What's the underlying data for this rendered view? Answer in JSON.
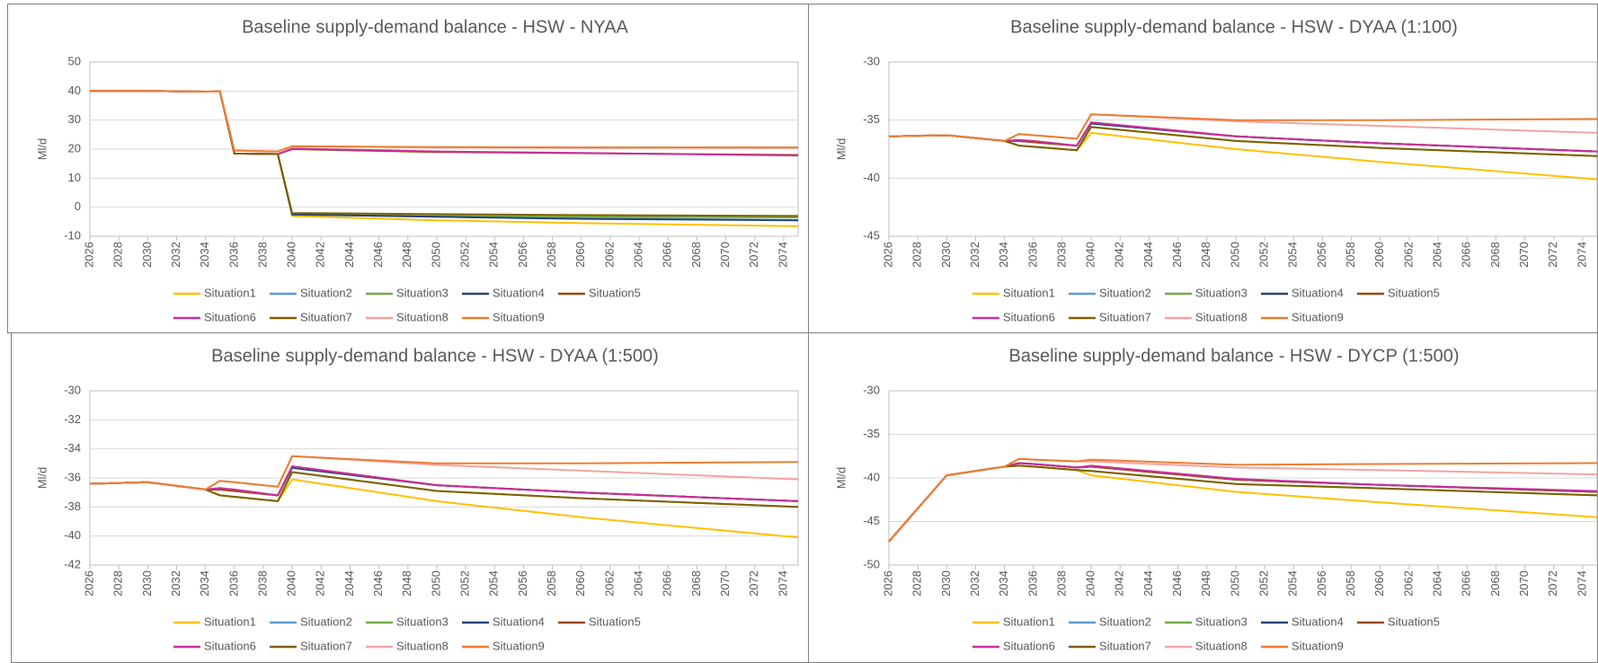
{
  "chart_data": [
    {
      "type": "line",
      "title": "Baseline supply-demand balance - HSW - NYAA",
      "y_label": "Ml/d",
      "x": [
        2026,
        2030,
        2034,
        2035,
        2036,
        2039,
        2040,
        2050,
        2060,
        2075
      ],
      "xlim": [
        2026,
        2075
      ],
      "xticks": [
        2026,
        2028,
        2030,
        2032,
        2034,
        2036,
        2038,
        2040,
        2042,
        2044,
        2046,
        2048,
        2050,
        2052,
        2054,
        2056,
        2058,
        2060,
        2062,
        2064,
        2066,
        2068,
        2070,
        2072,
        2074
      ],
      "ylim": [
        -10,
        50
      ],
      "yticks": [
        -10,
        0,
        10,
        20,
        30,
        40,
        50
      ],
      "grid": true,
      "series": [
        {
          "name": "Situation1",
          "color": "#ffc000",
          "values": [
            40,
            40,
            39.8,
            39.8,
            18.5,
            18.3,
            -3,
            -4.5,
            -5.5,
            -6.5
          ]
        },
        {
          "name": "Situation2",
          "color": "#5b9bd5",
          "values": [
            40,
            40,
            39.8,
            39.8,
            18.5,
            18.3,
            -2.5,
            -3.3,
            -3.8,
            -4.4
          ]
        },
        {
          "name": "Situation3",
          "color": "#70ad47",
          "values": [
            40,
            40,
            39.8,
            39.8,
            18.5,
            18.3,
            -2.5,
            -3,
            -3.3,
            -3.5
          ]
        },
        {
          "name": "Situation4",
          "color": "#264478",
          "values": [
            40,
            40,
            39.8,
            39.8,
            18.5,
            18.3,
            -2.5,
            -3.3,
            -4,
            -4.5
          ]
        },
        {
          "name": "Situation5",
          "color": "#9e480e",
          "values": [
            40,
            40,
            39.8,
            39.8,
            18.5,
            18.3,
            20,
            19,
            18.6,
            18
          ]
        },
        {
          "name": "Situation6",
          "color": "#c8309c",
          "values": [
            40,
            40,
            39.8,
            39.8,
            18.5,
            18.3,
            20.2,
            19.2,
            18.7,
            17.8
          ]
        },
        {
          "name": "Situation7",
          "color": "#806000",
          "values": [
            40,
            40,
            39.8,
            39.8,
            18.5,
            18.3,
            -2,
            -2.4,
            -2.7,
            -3
          ]
        },
        {
          "name": "Situation8",
          "color": "#f4a3a3",
          "values": [
            40,
            40,
            39.8,
            39.8,
            19.5,
            19.2,
            21,
            20.6,
            20.5,
            20.5
          ]
        },
        {
          "name": "Situation9",
          "color": "#ed7d31",
          "values": [
            40,
            40,
            39.8,
            40,
            19.5,
            19.2,
            21,
            20.7,
            20.6,
            20.6
          ]
        }
      ]
    },
    {
      "type": "line",
      "title": "Baseline supply-demand balance - HSW - DYAA (1:100)",
      "y_label": "Ml/d",
      "x": [
        2026,
        2030,
        2034,
        2035,
        2036,
        2039,
        2040,
        2050,
        2060,
        2075
      ],
      "xlim": [
        2026,
        2075
      ],
      "xticks": [
        2026,
        2028,
        2030,
        2032,
        2034,
        2036,
        2038,
        2040,
        2042,
        2044,
        2046,
        2048,
        2050,
        2052,
        2054,
        2056,
        2058,
        2060,
        2062,
        2064,
        2066,
        2068,
        2070,
        2072,
        2074
      ],
      "ylim": [
        -45,
        -30
      ],
      "yticks": [
        -45,
        -40,
        -35,
        -30
      ],
      "grid": true,
      "series": [
        {
          "name": "Situation1",
          "color": "#ffc000",
          "values": [
            -36.4,
            -36.3,
            -36.8,
            -37.2,
            -37.3,
            -37.6,
            -36.1,
            -37.5,
            -38.6,
            -40.1
          ]
        },
        {
          "name": "Situation2",
          "color": "#5b9bd5",
          "values": [
            -36.4,
            -36.3,
            -36.8,
            -36.8,
            -36.9,
            -37.2,
            -35.3,
            -36.4,
            -37,
            -37.7
          ]
        },
        {
          "name": "Situation3",
          "color": "#70ad47",
          "values": [
            -36.4,
            -36.3,
            -36.8,
            -37.2,
            -37.3,
            -37.6,
            -35.6,
            -36.8,
            -37.4,
            -38.1
          ]
        },
        {
          "name": "Situation4",
          "color": "#264478",
          "values": [
            -36.4,
            -36.3,
            -36.8,
            -36.8,
            -36.9,
            -37.2,
            -35.3,
            -36.4,
            -37,
            -37.7
          ]
        },
        {
          "name": "Situation5",
          "color": "#9e480e",
          "values": [
            -36.4,
            -36.3,
            -36.8,
            -36.8,
            -36.9,
            -37.2,
            -35.2,
            -36.4,
            -37,
            -37.7
          ]
        },
        {
          "name": "Situation6",
          "color": "#c8309c",
          "values": [
            -36.4,
            -36.3,
            -36.8,
            -36.7,
            -36.8,
            -37.2,
            -35.2,
            -36.4,
            -37,
            -37.7
          ]
        },
        {
          "name": "Situation7",
          "color": "#806000",
          "values": [
            -36.4,
            -36.3,
            -36.8,
            -37.2,
            -37.3,
            -37.6,
            -35.6,
            -36.8,
            -37.4,
            -38.1
          ]
        },
        {
          "name": "Situation8",
          "color": "#f4a3a3",
          "values": [
            -36.4,
            -36.3,
            -36.8,
            -36.2,
            -36.3,
            -36.6,
            -34.5,
            -35.1,
            -35.5,
            -36.1
          ]
        },
        {
          "name": "Situation9",
          "color": "#ed7d31",
          "values": [
            -36.4,
            -36.3,
            -36.8,
            -36.2,
            -36.3,
            -36.6,
            -34.5,
            -35,
            -35,
            -34.9
          ]
        }
      ]
    },
    {
      "type": "line",
      "title": "Baseline supply-demand balance - HSW - DYAA (1:500)",
      "y_label": "Ml/d",
      "x": [
        2026,
        2030,
        2034,
        2035,
        2036,
        2039,
        2040,
        2050,
        2060,
        2075
      ],
      "xlim": [
        2026,
        2075
      ],
      "xticks": [
        2026,
        2028,
        2030,
        2032,
        2034,
        2036,
        2038,
        2040,
        2042,
        2044,
        2046,
        2048,
        2050,
        2052,
        2054,
        2056,
        2058,
        2060,
        2062,
        2064,
        2066,
        2068,
        2070,
        2072,
        2074
      ],
      "ylim": [
        -42,
        -30
      ],
      "yticks": [
        -42,
        -40,
        -38,
        -36,
        -34,
        -32,
        -30
      ],
      "grid": true,
      "series": [
        {
          "name": "Situation1",
          "color": "#ffc000",
          "values": [
            -36.4,
            -36.3,
            -36.8,
            -37.2,
            -37.3,
            -37.6,
            -36.1,
            -37.6,
            -38.7,
            -40.1
          ]
        },
        {
          "name": "Situation2",
          "color": "#5b9bd5",
          "values": [
            -36.4,
            -36.3,
            -36.8,
            -36.8,
            -36.9,
            -37.2,
            -35.3,
            -36.5,
            -37,
            -37.6
          ]
        },
        {
          "name": "Situation3",
          "color": "#70ad47",
          "values": [
            -36.4,
            -36.3,
            -36.8,
            -37.2,
            -37.3,
            -37.6,
            -35.6,
            -36.9,
            -37.4,
            -38
          ]
        },
        {
          "name": "Situation4",
          "color": "#264478",
          "values": [
            -36.4,
            -36.3,
            -36.8,
            -36.8,
            -36.9,
            -37.2,
            -35.3,
            -36.5,
            -37,
            -37.6
          ]
        },
        {
          "name": "Situation5",
          "color": "#9e480e",
          "values": [
            -36.4,
            -36.3,
            -36.8,
            -36.8,
            -36.9,
            -37.2,
            -35.2,
            -36.5,
            -37,
            -37.6
          ]
        },
        {
          "name": "Situation6",
          "color": "#c8309c",
          "values": [
            -36.4,
            -36.3,
            -36.8,
            -36.7,
            -36.8,
            -37.2,
            -35.2,
            -36.5,
            -37,
            -37.6
          ]
        },
        {
          "name": "Situation7",
          "color": "#806000",
          "values": [
            -36.4,
            -36.3,
            -36.8,
            -37.2,
            -37.3,
            -37.6,
            -35.6,
            -36.9,
            -37.4,
            -38
          ]
        },
        {
          "name": "Situation8",
          "color": "#f4a3a3",
          "values": [
            -36.4,
            -36.3,
            -36.8,
            -36.2,
            -36.3,
            -36.6,
            -34.5,
            -35.1,
            -35.5,
            -36.1
          ]
        },
        {
          "name": "Situation9",
          "color": "#ed7d31",
          "values": [
            -36.4,
            -36.3,
            -36.8,
            -36.2,
            -36.3,
            -36.6,
            -34.5,
            -35,
            -35,
            -34.9
          ]
        }
      ]
    },
    {
      "type": "line",
      "title": "Baseline supply-demand balance - HSW - DYCP (1:500)",
      "y_label": "Ml/d",
      "x": [
        2026,
        2030,
        2034,
        2035,
        2036,
        2039,
        2040,
        2050,
        2060,
        2075
      ],
      "xlim": [
        2026,
        2075
      ],
      "xticks": [
        2026,
        2028,
        2030,
        2032,
        2034,
        2036,
        2038,
        2040,
        2042,
        2044,
        2046,
        2048,
        2050,
        2052,
        2054,
        2056,
        2058,
        2060,
        2062,
        2064,
        2066,
        2068,
        2070,
        2072,
        2074
      ],
      "ylim": [
        -50,
        -30
      ],
      "yticks": [
        -50,
        -45,
        -40,
        -35,
        -30
      ],
      "grid": true,
      "series": [
        {
          "name": "Situation1",
          "color": "#ffc000",
          "values": [
            -47.3,
            -39.7,
            -38.7,
            -38.6,
            -38.7,
            -39.1,
            -39.7,
            -41.6,
            -42.8,
            -44.5
          ]
        },
        {
          "name": "Situation2",
          "color": "#5b9bd5",
          "values": [
            -47.3,
            -39.7,
            -38.7,
            -38.3,
            -38.4,
            -38.8,
            -38.7,
            -40.2,
            -40.8,
            -41.6
          ]
        },
        {
          "name": "Situation3",
          "color": "#70ad47",
          "values": [
            -47.3,
            -39.7,
            -38.7,
            -38.6,
            -38.7,
            -39.1,
            -39.2,
            -40.7,
            -41.2,
            -42
          ]
        },
        {
          "name": "Situation4",
          "color": "#264478",
          "values": [
            -47.3,
            -39.7,
            -38.7,
            -38.3,
            -38.4,
            -38.8,
            -38.7,
            -40.2,
            -40.8,
            -41.6
          ]
        },
        {
          "name": "Situation5",
          "color": "#9e480e",
          "values": [
            -47.3,
            -39.7,
            -38.7,
            -38.3,
            -38.4,
            -38.8,
            -38.7,
            -40.2,
            -40.8,
            -41.6
          ]
        },
        {
          "name": "Situation6",
          "color": "#c8309c",
          "values": [
            -47.3,
            -39.7,
            -38.7,
            -38.3,
            -38.4,
            -38.8,
            -38.6,
            -40.1,
            -40.8,
            -41.5
          ]
        },
        {
          "name": "Situation7",
          "color": "#806000",
          "values": [
            -47.3,
            -39.7,
            -38.7,
            -38.6,
            -38.7,
            -39.1,
            -39.2,
            -40.7,
            -41.2,
            -42
          ]
        },
        {
          "name": "Situation8",
          "color": "#f4a3a3",
          "values": [
            -47.3,
            -39.7,
            -38.7,
            -37.8,
            -37.9,
            -38.1,
            -38.1,
            -38.8,
            -39.1,
            -39.6
          ]
        },
        {
          "name": "Situation9",
          "color": "#ed7d31",
          "values": [
            -47.3,
            -39.7,
            -38.7,
            -37.8,
            -37.9,
            -38.1,
            -37.9,
            -38.5,
            -38.4,
            -38.3
          ]
        }
      ]
    }
  ]
}
